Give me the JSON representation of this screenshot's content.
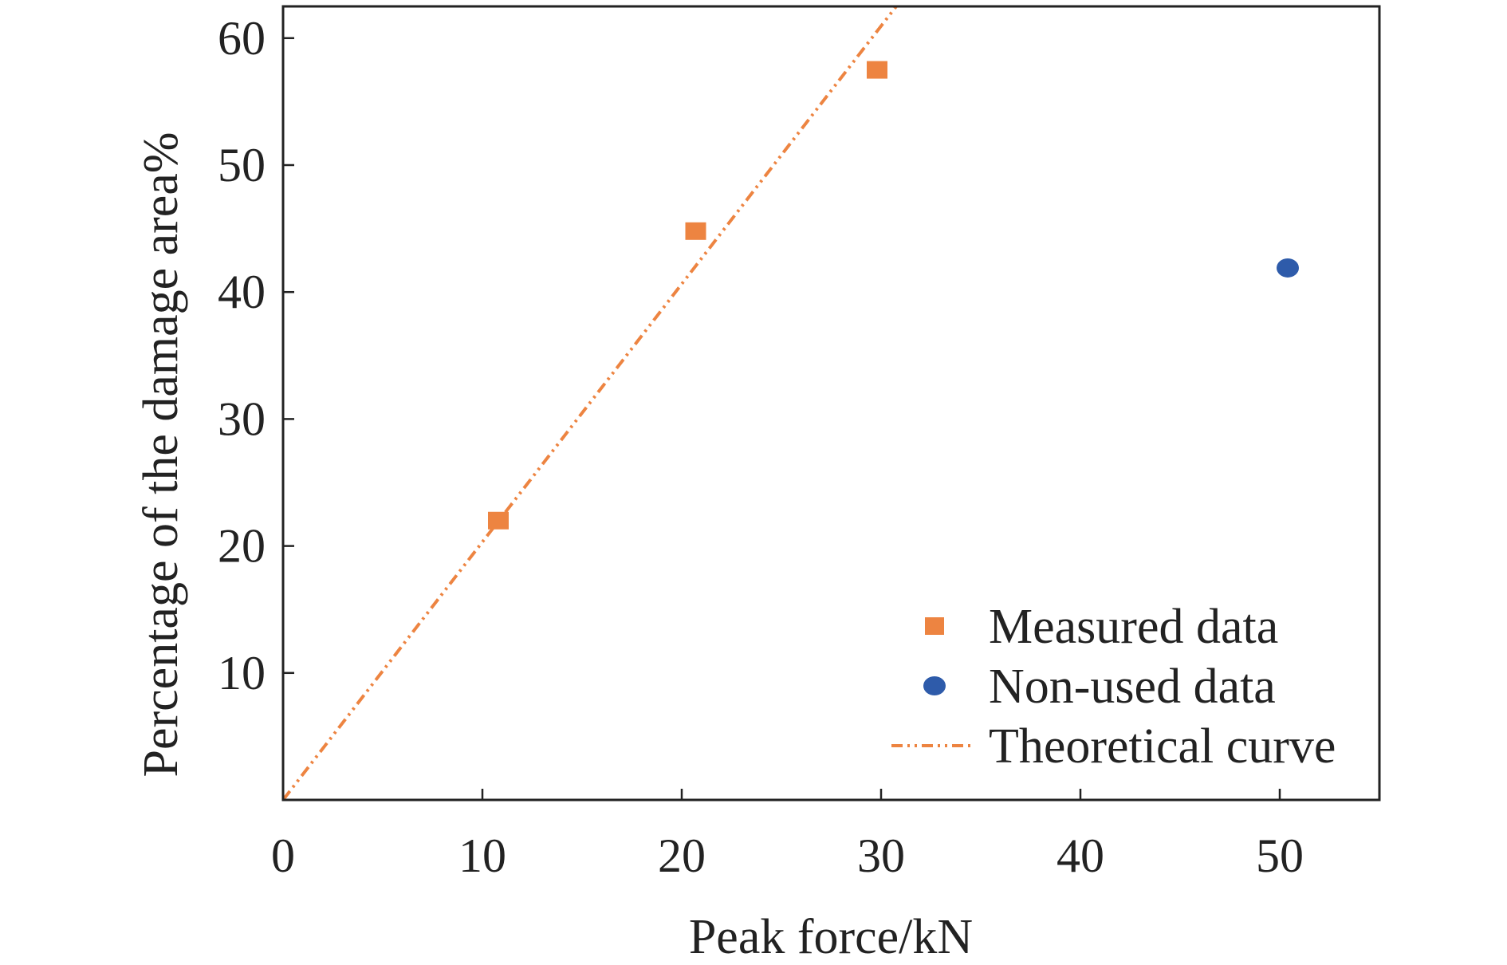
{
  "chart_data": {
    "type": "scatter",
    "title": "",
    "xlabel": "Peak force/kN",
    "ylabel": "Percentage of the damage area%",
    "xlim": [
      0,
      55
    ],
    "ylim": [
      0,
      62.5
    ],
    "x_ticks": [
      0,
      10,
      20,
      30,
      40,
      50
    ],
    "x_tick_labels": [
      "0",
      "10",
      "20",
      "30",
      "40",
      "50"
    ],
    "y_ticks": [
      10,
      20,
      30,
      40,
      50,
      60
    ],
    "y_tick_labels": [
      "10",
      "20",
      "30",
      "40",
      "50",
      "60"
    ],
    "grid": false,
    "legend_position": "bottom-right",
    "series": [
      {
        "name": "Measured data",
        "type": "scatter",
        "marker": "square",
        "color": "#ED8441",
        "points": [
          [
            10.8,
            22.0
          ],
          [
            20.7,
            44.8
          ],
          [
            29.8,
            57.5
          ]
        ]
      },
      {
        "name": "Non-used data",
        "type": "scatter",
        "marker": "circle",
        "color": "#2E5BAA",
        "points": [
          [
            50.4,
            41.9
          ]
        ]
      },
      {
        "name": "Theoretical curve",
        "type": "line",
        "style": "dash-dot-dot",
        "color": "#ED8441",
        "points": [
          [
            0,
            0
          ],
          [
            31.5,
            64.0
          ]
        ]
      }
    ]
  }
}
